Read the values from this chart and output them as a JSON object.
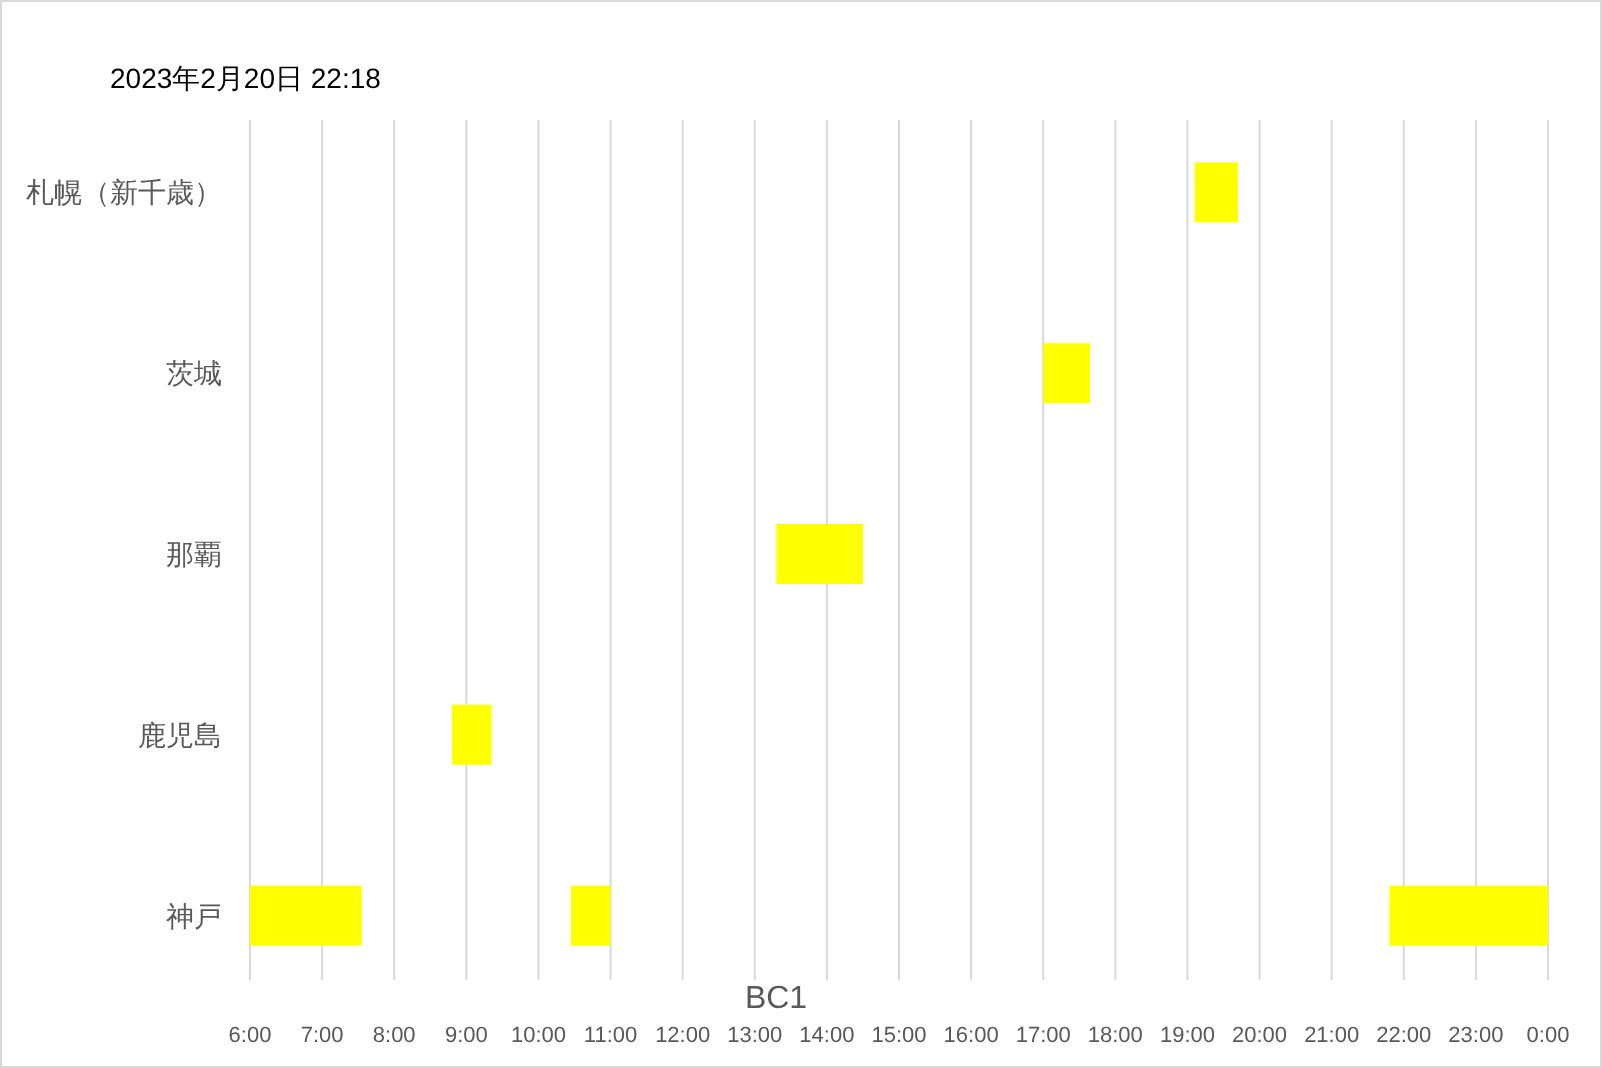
{
  "chart_data": {
    "type": "bar",
    "orientation": "horizontal",
    "title": "2023年2月20日 22:18",
    "xlabel": "BC1",
    "categories": [
      "札幌（新千歳）",
      "茨城",
      "那覇",
      "鹿児島",
      "神戸"
    ],
    "series": [
      {
        "color": "#ffff00",
        "base": [
          19.1,
          17.0,
          13.3,
          8.8,
          6.0
        ],
        "values": [
          0.6,
          0.65,
          1.2,
          0.55,
          1.55
        ]
      },
      {
        "color": "#ffff00",
        "base": [
          null,
          null,
          null,
          null,
          10.45
        ],
        "values": [
          null,
          null,
          null,
          null,
          0.55
        ]
      },
      {
        "color": "#ffff00",
        "base": [
          null,
          null,
          null,
          null,
          21.8
        ],
        "values": [
          null,
          null,
          null,
          null,
          2.2
        ]
      }
    ],
    "xlim": [
      6,
      24
    ],
    "xticks": [
      {
        "value": 6,
        "label": "6:00"
      },
      {
        "value": 7,
        "label": "7:00"
      },
      {
        "value": 8,
        "label": "8:00"
      },
      {
        "value": 9,
        "label": "9:00"
      },
      {
        "value": 10,
        "label": "10:00"
      },
      {
        "value": 11,
        "label": "11:00"
      },
      {
        "value": 12,
        "label": "12:00"
      },
      {
        "value": 13,
        "label": "13:00"
      },
      {
        "value": 14,
        "label": "14:00"
      },
      {
        "value": 15,
        "label": "15:00"
      },
      {
        "value": 16,
        "label": "16:00"
      },
      {
        "value": 17,
        "label": "17:00"
      },
      {
        "value": 18,
        "label": "18:00"
      },
      {
        "value": 19,
        "label": "19:00"
      },
      {
        "value": 20,
        "label": "20:00"
      },
      {
        "value": 21,
        "label": "21:00"
      },
      {
        "value": 22,
        "label": "22:00"
      },
      {
        "value": 23,
        "label": "23:00"
      },
      {
        "value": 24,
        "label": "0:00"
      }
    ],
    "grid": "x"
  }
}
